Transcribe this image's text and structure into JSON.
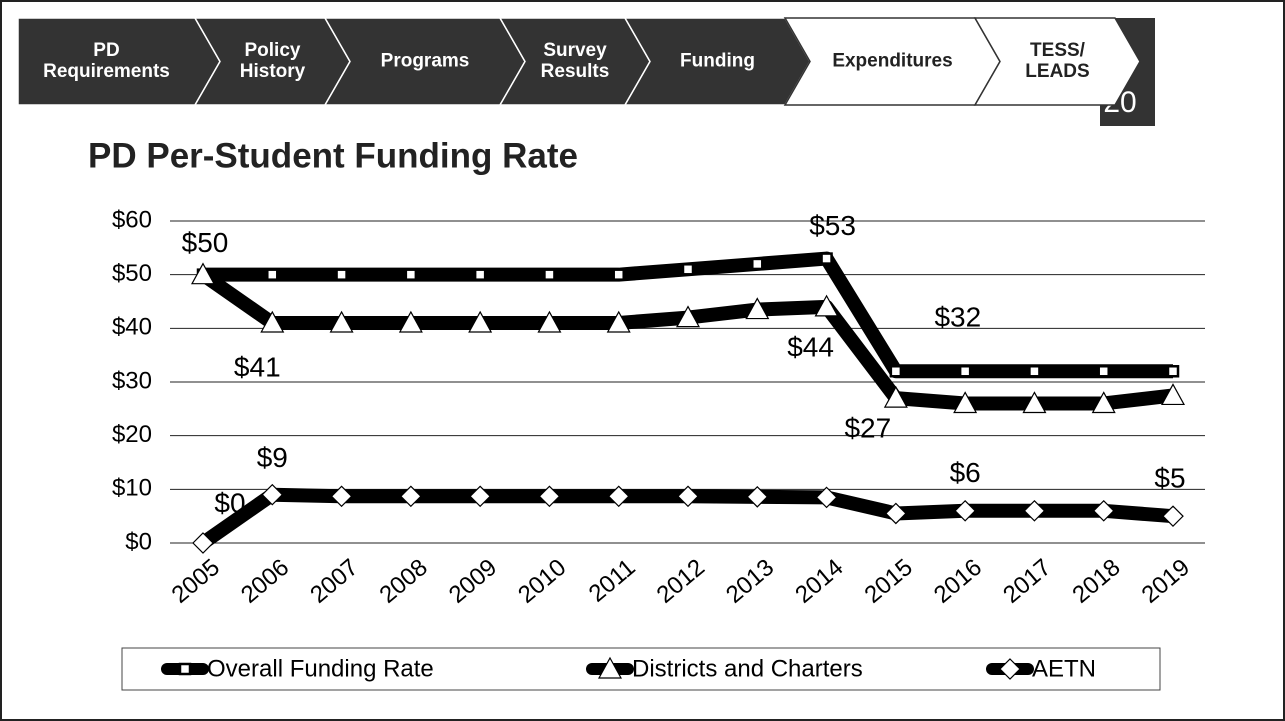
{
  "nav": [
    {
      "lines": [
        "PD",
        "Requirements"
      ]
    },
    {
      "lines": [
        "Policy",
        "History"
      ]
    },
    {
      "lines": [
        "Programs"
      ]
    },
    {
      "lines": [
        "Survey",
        "Results"
      ]
    },
    {
      "lines": [
        "Funding"
      ]
    },
    {
      "lines": [
        "Expenditures"
      ]
    },
    {
      "lines": [
        "TESS/",
        "LEADS"
      ]
    }
  ],
  "page_number": "20",
  "chart_data": {
    "type": "line",
    "title": "PD Per-Student Funding Rate",
    "categories": [
      "2005",
      "2006",
      "2007",
      "2008",
      "2009",
      "2010",
      "2011",
      "2012",
      "2013",
      "2014",
      "2015",
      "2016",
      "2017",
      "2018",
      "2019"
    ],
    "series": [
      {
        "name": "Overall Funding Rate",
        "color": "#000000",
        "marker": "square",
        "values": [
          50,
          50,
          50,
          50,
          50,
          50,
          50,
          51,
          52,
          53,
          32,
          32,
          32,
          32,
          32
        ],
        "value_labels": [
          null,
          null,
          null,
          null,
          null,
          null,
          null,
          null,
          null,
          "$53",
          "$32",
          null,
          null,
          null,
          null
        ]
      },
      {
        "name": "Districts and Charters",
        "color": "#000000",
        "marker": "triangle",
        "values": [
          50,
          41,
          41,
          41,
          41,
          41,
          41,
          42,
          43.5,
          44,
          27,
          26,
          26,
          26,
          27.5
        ],
        "value_labels": [
          "$50",
          "$41",
          null,
          null,
          null,
          null,
          null,
          null,
          null,
          "$44",
          "$27",
          null,
          null,
          null,
          null
        ]
      },
      {
        "name": "AETN",
        "color": "#000000",
        "marker": "diamond",
        "values": [
          0,
          9,
          8.7,
          8.7,
          8.7,
          8.7,
          8.7,
          8.7,
          8.6,
          8.5,
          5.5,
          6,
          6,
          6,
          5
        ],
        "value_labels": [
          "$0",
          "$9",
          null,
          null,
          null,
          null,
          null,
          null,
          null,
          null,
          null,
          "$6",
          null,
          null,
          "$5"
        ]
      }
    ],
    "ylim": [
      0,
      60
    ],
    "yticks": [
      {
        "value": 0,
        "label": "$0"
      },
      {
        "value": 10,
        "label": "$10"
      },
      {
        "value": 20,
        "label": "$20"
      },
      {
        "value": 30,
        "label": "$30"
      },
      {
        "value": 40,
        "label": "$40"
      },
      {
        "value": 50,
        "label": "$50"
      },
      {
        "value": 60,
        "label": "$60"
      }
    ],
    "grid": true,
    "legend": "bottom"
  }
}
